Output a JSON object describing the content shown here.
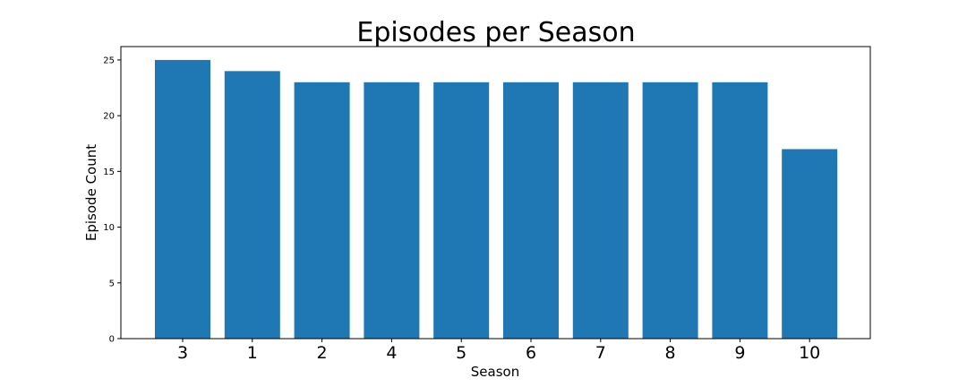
{
  "chart_data": {
    "type": "bar",
    "title": "Episodes per Season",
    "xlabel": "Season",
    "ylabel": "Episode Count",
    "categories": [
      "3",
      "1",
      "2",
      "4",
      "5",
      "6",
      "7",
      "8",
      "9",
      "10"
    ],
    "values": [
      25,
      24,
      23,
      23,
      23,
      23,
      23,
      23,
      23,
      17
    ],
    "yticks": [
      "0",
      "5",
      "10",
      "15",
      "20",
      "25"
    ],
    "ylim": [
      0,
      26.2
    ],
    "grid": false,
    "bar_color": "#1f77b4"
  }
}
